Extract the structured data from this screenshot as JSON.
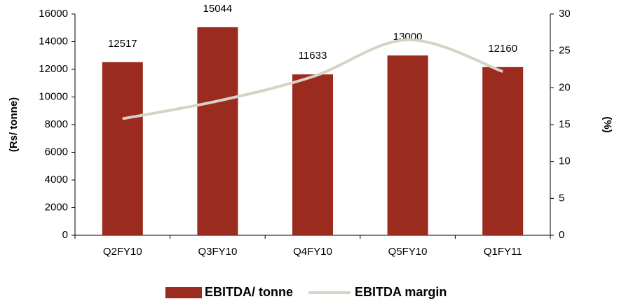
{
  "chart_data": {
    "type": "bar",
    "categories": [
      "Q2FY10",
      "Q3FY10",
      "Q4FY10",
      "Q5FY10",
      "Q1FY11"
    ],
    "series": [
      {
        "name": "EBITDA/ tonne",
        "color": "#9b2a1f",
        "values": [
          12517,
          15044,
          11633,
          13000,
          12160
        ]
      },
      {
        "name": "EBITDA margin",
        "color": "#d6d3c4",
        "axis": "y2",
        "type": "line",
        "values": [
          15.8,
          18.2,
          21.5,
          26.5,
          22.2
        ]
      }
    ],
    "ylabel": "(Rs/ tonne)",
    "y2label": "(%)",
    "ylim": [
      0,
      16000
    ],
    "yticks": [
      0,
      2000,
      4000,
      6000,
      8000,
      10000,
      12000,
      14000,
      16000
    ],
    "y2lim": [
      0,
      30
    ],
    "y2ticks": [
      0,
      5,
      10,
      15,
      20,
      25,
      30
    ],
    "legend": "bottom"
  }
}
